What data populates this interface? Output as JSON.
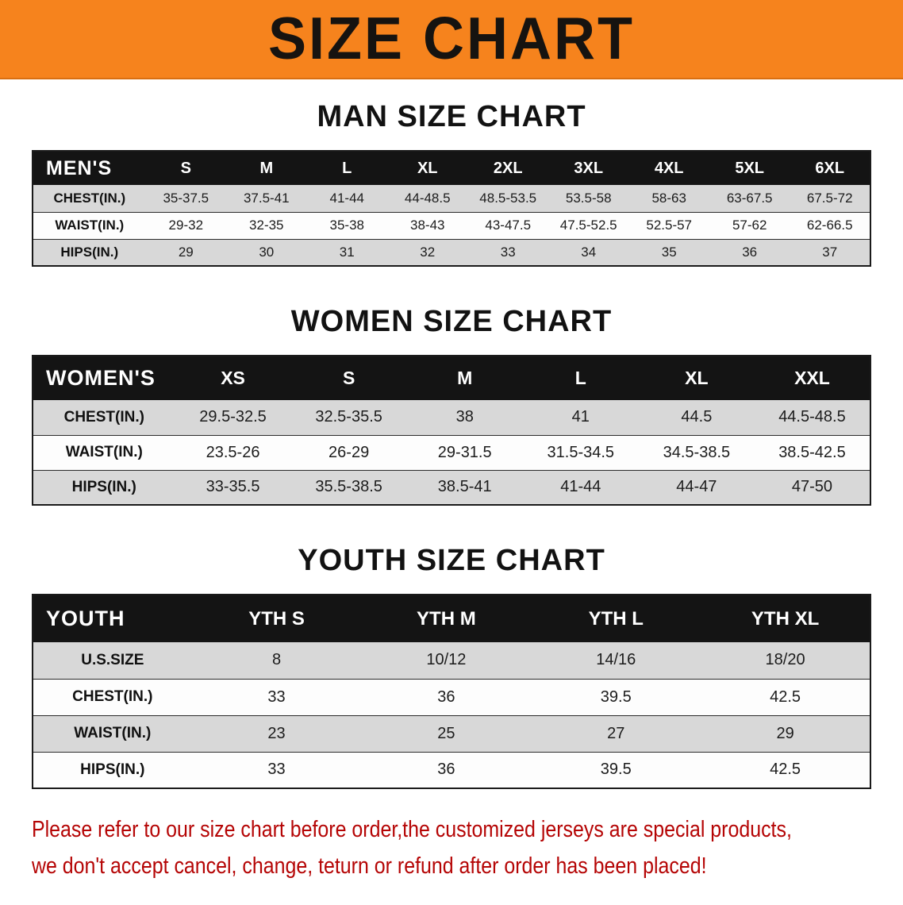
{
  "banner": {
    "title": "SIZE CHART",
    "bg_color": "#f6831d",
    "text_color": "#161310"
  },
  "sections": [
    {
      "heading": "MAN SIZE CHART",
      "table": {
        "label": "MEN'S",
        "columns": [
          "S",
          "M",
          "L",
          "XL",
          "2XL",
          "3XL",
          "4XL",
          "5XL",
          "6XL"
        ],
        "rows": [
          {
            "label": "CHEST(IN.)",
            "values": [
              "35-37.5",
              "37.5-41",
              "41-44",
              "44-48.5",
              "48.5-53.5",
              "53.5-58",
              "58-63",
              "63-67.5",
              "67.5-72"
            ]
          },
          {
            "label": "WAIST(IN.)",
            "values": [
              "29-32",
              "32-35",
              "35-38",
              "38-43",
              "43-47.5",
              "47.5-52.5",
              "52.5-57",
              "57-62",
              "62-66.5"
            ]
          },
          {
            "label": "HIPS(IN.)",
            "values": [
              "29",
              "30",
              "31",
              "32",
              "33",
              "34",
              "35",
              "36",
              "37"
            ]
          }
        ]
      }
    },
    {
      "heading": "WOMEN SIZE CHART",
      "table": {
        "label": "WOMEN'S",
        "columns": [
          "XS",
          "S",
          "M",
          "L",
          "XL",
          "XXL"
        ],
        "rows": [
          {
            "label": "CHEST(IN.)",
            "values": [
              "29.5-32.5",
              "32.5-35.5",
              "38",
              "41",
              "44.5",
              "44.5-48.5"
            ]
          },
          {
            "label": "WAIST(IN.)",
            "values": [
              "23.5-26",
              "26-29",
              "29-31.5",
              "31.5-34.5",
              "34.5-38.5",
              "38.5-42.5"
            ]
          },
          {
            "label": "HIPS(IN.)",
            "values": [
              "33-35.5",
              "35.5-38.5",
              "38.5-41",
              "41-44",
              "44-47",
              "47-50"
            ]
          }
        ]
      }
    },
    {
      "heading": "YOUTH SIZE CHART",
      "table": {
        "label": "YOUTH",
        "columns": [
          "YTH S",
          "YTH M",
          "YTH L",
          "YTH XL"
        ],
        "rows": [
          {
            "label": "U.S.SIZE",
            "values": [
              "8",
              "10/12",
              "14/16",
              "18/20"
            ]
          },
          {
            "label": "CHEST(IN.)",
            "values": [
              "33",
              "36",
              "39.5",
              "42.5"
            ]
          },
          {
            "label": "WAIST(IN.)",
            "values": [
              "23",
              "25",
              "27",
              "29"
            ]
          },
          {
            "label": "HIPS(IN.)",
            "values": [
              "33",
              "36",
              "39.5",
              "42.5"
            ]
          }
        ]
      }
    }
  ],
  "footer": {
    "line1": "Please refer to our size chart before order,the customized jerseys are special products,",
    "line2": "we don't accept cancel, change, teturn or refund after order has been placed!",
    "text_color": "#b50505"
  }
}
